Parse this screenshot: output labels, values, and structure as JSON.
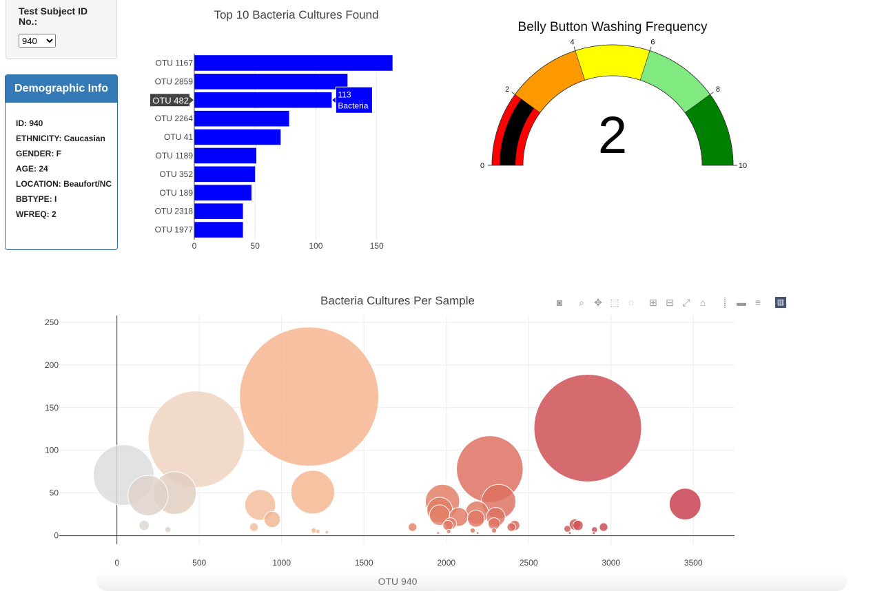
{
  "selector": {
    "label": "Test Subject ID No.:",
    "selected": "940",
    "options": [
      "940"
    ]
  },
  "demographic": {
    "title": "Demographic Info",
    "rows": [
      "ID: 940",
      "ETHNICITY: Caucasian",
      "GENDER: F",
      "AGE: 24",
      "LOCATION: Beaufort/NC",
      "BBTYPE: I",
      "WFREQ: 2"
    ]
  },
  "bubble_xlabel_text": "OTU 940",
  "modebar": {
    "buttons": [
      "camera-icon",
      "zoom-icon",
      "pan-icon",
      "box-select-icon",
      "lasso-icon",
      "zoom-in-icon",
      "zoom-out-icon",
      "autoscale-icon",
      "reset-axes-icon",
      "spike-lines-icon",
      "hover-closest-icon",
      "hover-compare-icon",
      "plotly-logo-icon"
    ]
  },
  "chart_data": [
    {
      "type": "bar",
      "orientation": "horizontal",
      "title": "Top 10 Bacteria Cultures Found",
      "categories": [
        "OTU 1167",
        "OTU 2859",
        "OTU 482",
        "OTU 2264",
        "OTU 41",
        "OTU 1189",
        "OTU 352",
        "OTU 189",
        "OTU 2318",
        "OTU 1977"
      ],
      "values": [
        163,
        126,
        113,
        78,
        71,
        51,
        50,
        47,
        40,
        40
      ],
      "xlim": [
        0,
        170
      ],
      "xticks": [
        0,
        50,
        100,
        150
      ],
      "color": "#0000ff",
      "tooltip": {
        "category": "OTU 482",
        "value_text": "113",
        "unit_text": "Bacteria"
      }
    },
    {
      "type": "gauge",
      "title": "Belly Button Washing Frequency",
      "value": 2,
      "range": [
        0,
        10
      ],
      "ticks": [
        0,
        2,
        4,
        6,
        8,
        10
      ],
      "steps": [
        {
          "range": [
            0,
            2
          ],
          "color": "#ff0000"
        },
        {
          "range": [
            2,
            4
          ],
          "color": "#ff9900"
        },
        {
          "range": [
            4,
            6
          ],
          "color": "#ffff00"
        },
        {
          "range": [
            6,
            8
          ],
          "color": "#80ea80"
        },
        {
          "range": [
            8,
            10
          ],
          "color": "#008000"
        }
      ],
      "bar_color": "#000000"
    },
    {
      "type": "scatter",
      "subtype": "bubble",
      "title": "Bacteria Cultures Per Sample",
      "xlabel": "OTU 940",
      "xlim": [
        -350,
        3750
      ],
      "ylim": [
        -10,
        258
      ],
      "xticks": [
        0,
        500,
        1000,
        1500,
        2000,
        2500,
        3000,
        3500
      ],
      "yticks": [
        0,
        50,
        100,
        150,
        200,
        250
      ],
      "points": [
        {
          "x": 41,
          "y": 71,
          "color": "#dcdcdc"
        },
        {
          "x": 189,
          "y": 47,
          "color": "#ded2c9"
        },
        {
          "x": 352,
          "y": 50,
          "color": "#e0cdbe"
        },
        {
          "x": 482,
          "y": 113,
          "color": "#efd2bf"
        },
        {
          "x": 1167,
          "y": 163,
          "color": "#f5b28b"
        },
        {
          "x": 1189,
          "y": 51,
          "color": "#f4b48e"
        },
        {
          "x": 870,
          "y": 36,
          "color": "#f3bc99"
        },
        {
          "x": 943,
          "y": 19,
          "color": "#f2b490"
        },
        {
          "x": 2859,
          "y": 126,
          "color": "#cc4a4f"
        },
        {
          "x": 2264,
          "y": 78,
          "color": "#dd6c5d"
        },
        {
          "x": 2318,
          "y": 40,
          "color": "#dd6f5f"
        },
        {
          "x": 1977,
          "y": 40,
          "color": "#e27b63"
        },
        {
          "x": 1960,
          "y": 30,
          "color": "#e27f66"
        },
        {
          "x": 1960,
          "y": 24,
          "color": "#e27f66"
        },
        {
          "x": 2186,
          "y": 27,
          "color": "#e07661"
        },
        {
          "x": 2075,
          "y": 22,
          "color": "#e07963"
        },
        {
          "x": 2180,
          "y": 20,
          "color": "#e07661"
        },
        {
          "x": 2300,
          "y": 22,
          "color": "#de7260"
        },
        {
          "x": 2290,
          "y": 14,
          "color": "#de7260"
        },
        {
          "x": 2415,
          "y": 12,
          "color": "#db6a5b"
        },
        {
          "x": 3450,
          "y": 37,
          "color": "#c63c4a"
        },
        {
          "x": 2010,
          "y": 12,
          "color": "#e07a64"
        },
        {
          "x": 2025,
          "y": 14,
          "color": "#e07a64"
        },
        {
          "x": 2395,
          "y": 10,
          "color": "#db6a5b"
        },
        {
          "x": 2800,
          "y": 12,
          "color": "#cf5052"
        },
        {
          "x": 2780,
          "y": 13,
          "color": "#cf5052"
        },
        {
          "x": 2955,
          "y": 10,
          "color": "#cb4a50"
        },
        {
          "x": 2735,
          "y": 8,
          "color": "#d05654"
        },
        {
          "x": 2900,
          "y": 7,
          "color": "#cc4c50"
        },
        {
          "x": 1795,
          "y": 10,
          "color": "#e58468"
        },
        {
          "x": 832,
          "y": 10,
          "color": "#f3bc9a"
        },
        {
          "x": 165,
          "y": 12,
          "color": "#dcd5cf"
        },
        {
          "x": 310,
          "y": 7,
          "color": "#ddd0c5"
        },
        {
          "x": 1195,
          "y": 6,
          "color": "#f4b48e"
        },
        {
          "x": 1220,
          "y": 5,
          "color": "#f4b48e"
        },
        {
          "x": 1275,
          "y": 4,
          "color": "#f3b28c"
        },
        {
          "x": 2160,
          "y": 6,
          "color": "#e07661"
        },
        {
          "x": 2290,
          "y": 6,
          "color": "#de7260"
        },
        {
          "x": 2015,
          "y": 5,
          "color": "#e07a64"
        },
        {
          "x": 1950,
          "y": 3,
          "color": "#e27f66"
        },
        {
          "x": 2190,
          "y": 3,
          "color": "#e07661"
        },
        {
          "x": 2895,
          "y": 3,
          "color": "#cc4c50"
        },
        {
          "x": 2750,
          "y": 3,
          "color": "#d05654"
        }
      ]
    }
  ]
}
